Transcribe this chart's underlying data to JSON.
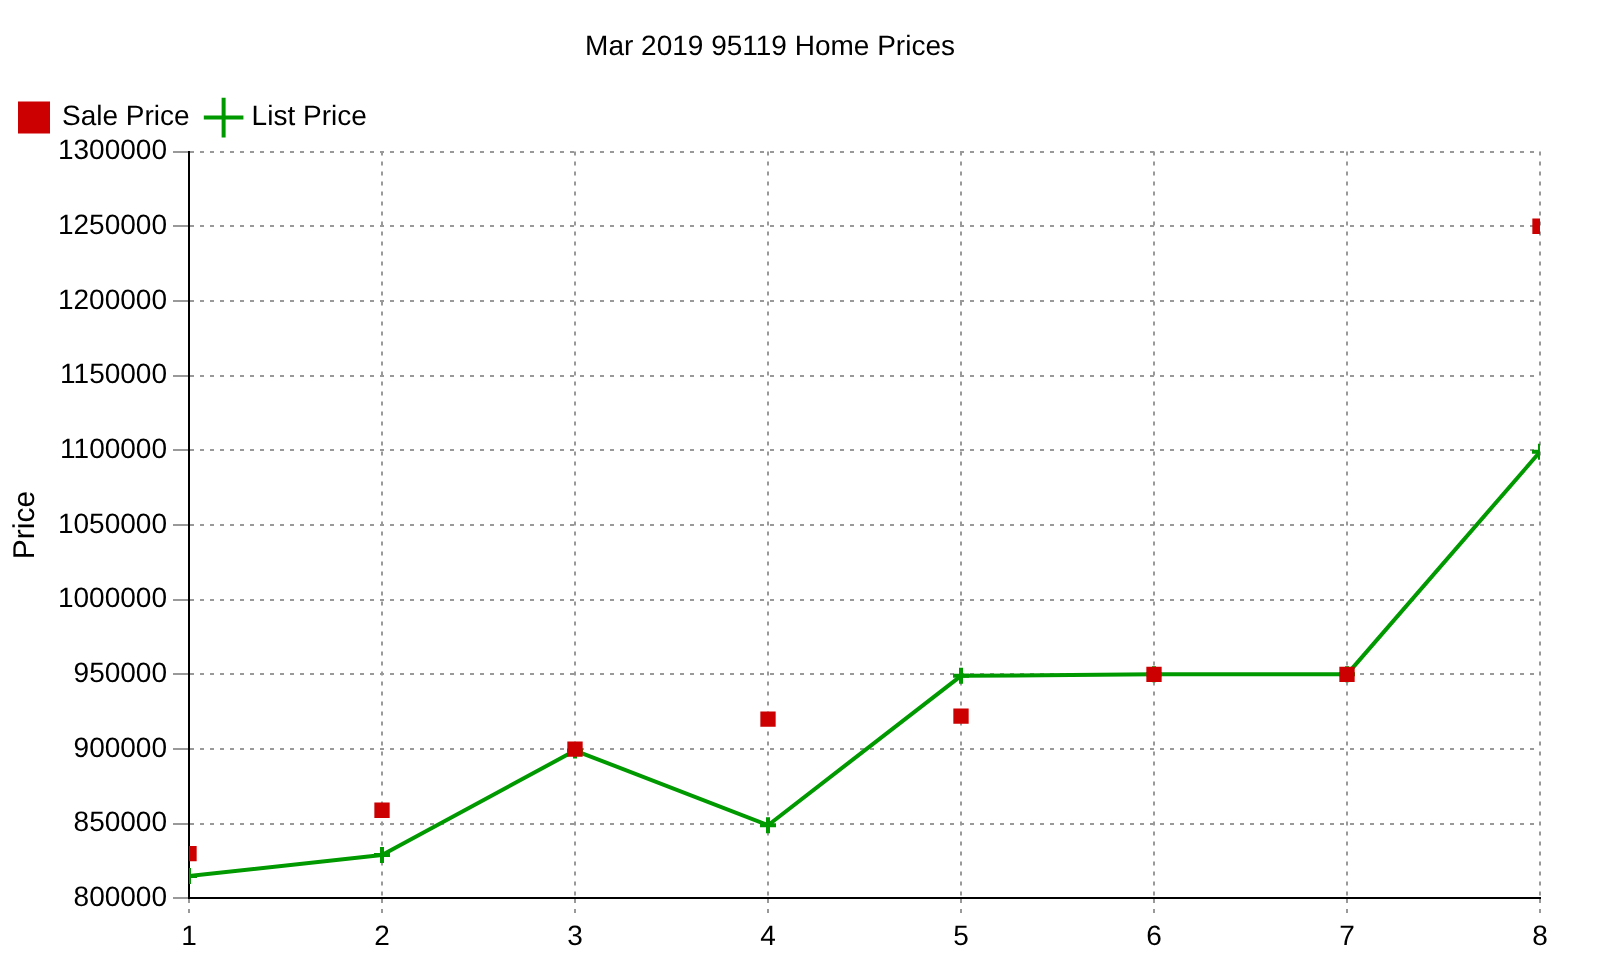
{
  "chart_data": {
    "type": "line",
    "title": "Mar 2019 95119 Home Prices",
    "ylabel": "Price",
    "x": [
      1,
      2,
      3,
      4,
      5,
      6,
      7,
      8
    ],
    "xlim": [
      1,
      8
    ],
    "xticks": [
      1,
      2,
      3,
      4,
      5,
      6,
      7,
      8
    ],
    "ylim": [
      800000,
      1300000
    ],
    "yticks": [
      800000,
      850000,
      900000,
      950000,
      1000000,
      1050000,
      1100000,
      1150000,
      1200000,
      1250000,
      1300000
    ],
    "grid": true,
    "legend": "top left",
    "series": [
      {
        "name": "List Price",
        "color": "#009900",
        "marker": "cross",
        "values": [
          815000,
          829000,
          899000,
          849000,
          949000,
          950000,
          950000,
          1099000
        ]
      },
      {
        "name": "Sale Price",
        "type": "scatter",
        "color": "#cc0000",
        "marker": "square",
        "values": [
          830000,
          859000,
          900000,
          920000,
          922000,
          950000,
          950000,
          1250000
        ]
      }
    ]
  }
}
